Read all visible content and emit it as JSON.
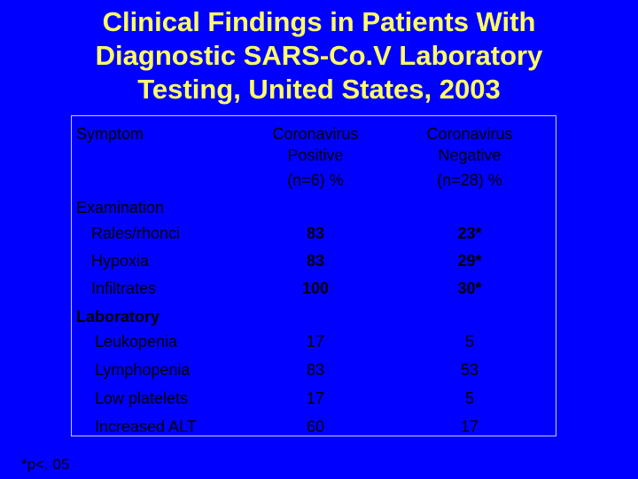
{
  "title": {
    "line1": "Clinical Findings in Patients With",
    "line2": "Diagnostic SARS-Co.V Laboratory",
    "line3": "Testing, United States, 2003"
  },
  "table": {
    "headers": {
      "symptom": "Symptom",
      "positive": [
        "Coronavirus",
        "Positive",
        "(n=6) %"
      ],
      "negative": [
        "Coronavirus",
        "Negative",
        "(n=28) %"
      ]
    },
    "sections": [
      {
        "label": "Examination",
        "rows": [
          {
            "name": "Rales/rhonci",
            "positive": "83",
            "negative": "23*"
          },
          {
            "name": "Hypoxia",
            "positive": "83",
            "negative": "29*"
          },
          {
            "name": "Infiltrates",
            "positive": "100",
            "negative": "30*"
          }
        ]
      },
      {
        "label": "Laboratory",
        "rows": [
          {
            "name": "Leukopenia",
            "positive": "17",
            "negative": "5"
          },
          {
            "name": "Lymphopenia",
            "positive": "83",
            "negative": "53"
          },
          {
            "name": "Low platelets",
            "positive": "17",
            "negative": "5"
          },
          {
            "name": "Increased ALT",
            "positive": "60",
            "negative": "17"
          }
        ]
      }
    ]
  },
  "footnote": "*p<. 05"
}
